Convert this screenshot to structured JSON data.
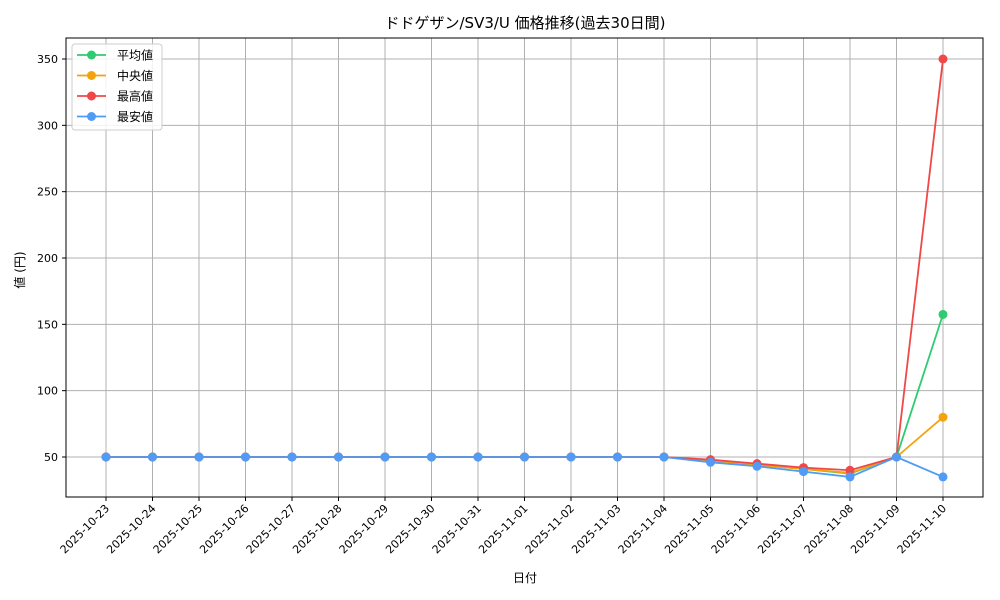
{
  "chart_data": {
    "type": "line",
    "title": "ドドゲザン/SV3/U 価格推移(過去30日間)",
    "xlabel": "日付",
    "ylabel": "値 (円)",
    "ylim": [
      20,
      365
    ],
    "yticks": [
      50,
      100,
      150,
      200,
      250,
      300,
      350
    ],
    "grid": true,
    "legend_position": "upper left",
    "categories": [
      "2025-10-23",
      "2025-10-24",
      "2025-10-25",
      "2025-10-26",
      "2025-10-27",
      "2025-10-28",
      "2025-10-29",
      "2025-10-30",
      "2025-10-31",
      "2025-11-01",
      "2025-11-02",
      "2025-11-03",
      "2025-11-04",
      "2025-11-05",
      "2025-11-06",
      "2025-11-07",
      "2025-11-08",
      "2025-11-09",
      "2025-11-10"
    ],
    "series": [
      {
        "name": "平均値",
        "color": "#2ecc71",
        "values": [
          50,
          50,
          50,
          50,
          50,
          50,
          50,
          50,
          50,
          50,
          50,
          50,
          50,
          47,
          44,
          41,
          37.5,
          50,
          157.5
        ]
      },
      {
        "name": "中央値",
        "color": "#f5a30a",
        "values": [
          50,
          50,
          50,
          50,
          50,
          50,
          50,
          50,
          50,
          50,
          50,
          50,
          50,
          47,
          44,
          41,
          38,
          50,
          80
        ]
      },
      {
        "name": "最高値",
        "color": "#f04848",
        "values": [
          50,
          50,
          50,
          50,
          50,
          50,
          50,
          50,
          50,
          50,
          50,
          50,
          50,
          48,
          45,
          42,
          40,
          50,
          350
        ]
      },
      {
        "name": "最安値",
        "color": "#4f9bf5",
        "values": [
          50,
          50,
          50,
          50,
          50,
          50,
          50,
          50,
          50,
          50,
          50,
          50,
          50,
          46,
          43,
          39,
          35,
          50,
          35
        ]
      }
    ]
  }
}
